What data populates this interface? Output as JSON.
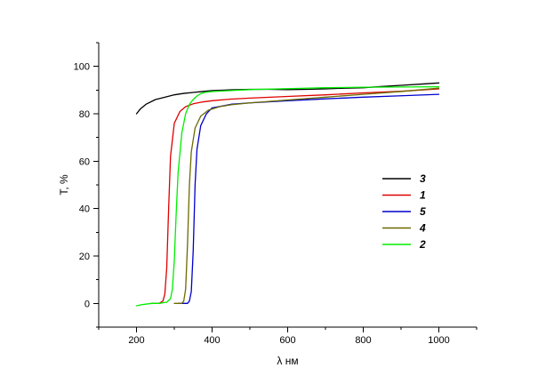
{
  "chart_data": {
    "type": "line",
    "xlabel": "λ нм",
    "ylabel": "T, %",
    "xlim": [
      100,
      1100
    ],
    "ylim": [
      -10,
      110
    ],
    "x_ticks": [
      200,
      400,
      600,
      800,
      1000
    ],
    "y_ticks": [
      0,
      20,
      40,
      60,
      80,
      100
    ],
    "grid": false,
    "legend_position": "right",
    "series": [
      {
        "name": "3",
        "color": "#000000",
        "x": [
          200,
          210,
          225,
          250,
          275,
          300,
          325,
          350,
          375,
          400,
          450,
          500,
          550,
          600,
          650,
          700,
          750,
          800,
          850,
          900,
          950,
          1000
        ],
        "y": [
          80,
          82,
          84,
          86,
          87,
          88,
          88.6,
          89,
          89.4,
          89.8,
          90.1,
          90.3,
          90.3,
          90.2,
          90.3,
          90.5,
          90.8,
          91.0,
          91.5,
          92.0,
          92.5,
          93.0
        ]
      },
      {
        "name": "1",
        "color": "#e00000",
        "x": [
          240,
          260,
          270,
          275,
          280,
          285,
          290,
          300,
          315,
          330,
          350,
          375,
          400,
          450,
          500,
          600,
          700,
          800,
          900,
          1000
        ],
        "y": [
          0,
          0,
          1,
          4,
          15,
          40,
          62,
          76,
          81,
          83,
          84.2,
          85,
          85.5,
          86.2,
          86.6,
          87.3,
          88.0,
          88.8,
          89.5,
          90.5
        ]
      },
      {
        "name": "5",
        "color": "#0000cc",
        "x": [
          310,
          335,
          340,
          345,
          350,
          355,
          360,
          370,
          385,
          400,
          450,
          500,
          600,
          700,
          800,
          900,
          1000
        ],
        "y": [
          0,
          0,
          1,
          5,
          22,
          50,
          65,
          75,
          80,
          82.5,
          84,
          84.6,
          85.5,
          86.3,
          87,
          87.6,
          88.2
        ]
      },
      {
        "name": "4",
        "color": "#6b6b00",
        "x": [
          300,
          320,
          325,
          330,
          335,
          340,
          345,
          355,
          370,
          390,
          420,
          450,
          500,
          600,
          700,
          800,
          900,
          1000
        ],
        "y": [
          0,
          0,
          1,
          6,
          25,
          50,
          64,
          74,
          79,
          81.5,
          83,
          83.8,
          84.6,
          85.8,
          87,
          88.2,
          89.4,
          90.8
        ]
      },
      {
        "name": "2",
        "color": "#00ee00",
        "x": [
          200,
          215,
          240,
          260,
          280,
          290,
          295,
          300,
          305,
          310,
          320,
          330,
          340,
          350,
          360,
          370,
          380,
          400,
          450,
          500,
          600,
          700,
          800,
          900,
          1000
        ],
        "y": [
          -1,
          -0.5,
          0,
          0,
          0.5,
          2,
          6,
          18,
          38,
          55,
          72,
          80,
          84,
          86,
          87.5,
          88.5,
          89,
          89.4,
          89.8,
          90.2,
          90.6,
          91.0,
          91.2,
          91.3,
          91.4
        ]
      }
    ]
  }
}
